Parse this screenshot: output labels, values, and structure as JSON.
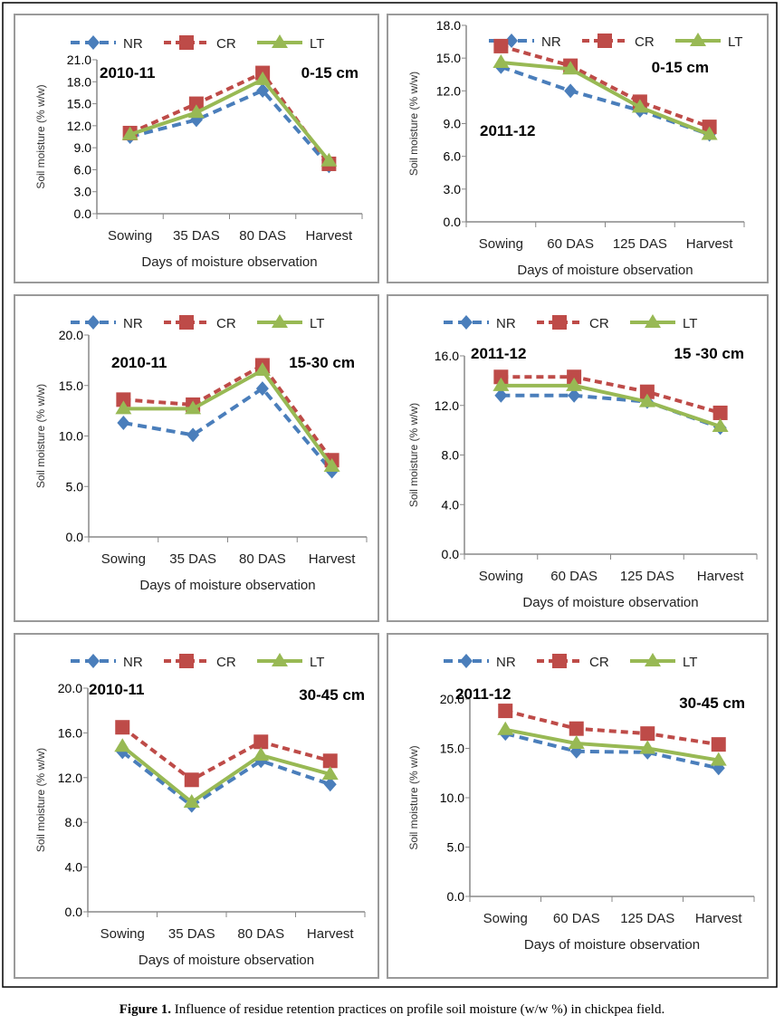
{
  "caption": {
    "label": "Figure 1.",
    "text": " Influence of residue retention practices on profile soil moisture (w/w %) in chickpea field."
  },
  "colors": {
    "NR": "#4a7ebb",
    "CR": "#be4b48",
    "LT": "#98b954"
  },
  "chart_data": [
    {
      "type": "line",
      "year": "2010-11",
      "depth": "0-15 cm",
      "xlabel": "Days of moisture observation",
      "ylabel": "Soil moisture (% w/w)",
      "categories": [
        "Sowing",
        "35 DAS",
        "80 DAS",
        "Harvest"
      ],
      "ylim": [
        0,
        21
      ],
      "yticks": [
        "0.0",
        "3.0",
        "6.0",
        "9.0",
        "12.0",
        "15.0",
        "18.0",
        "21.0"
      ],
      "legend": "top",
      "series": [
        {
          "name": "NR",
          "values": [
            10.5,
            12.8,
            16.8,
            6.5
          ]
        },
        {
          "name": "CR",
          "values": [
            11.0,
            15.0,
            19.2,
            6.8
          ]
        },
        {
          "name": "LT",
          "values": [
            10.8,
            13.8,
            18.3,
            7.2
          ]
        }
      ]
    },
    {
      "type": "line",
      "year": "2011-12",
      "depth": "0-15 cm",
      "xlabel": "Days of moisture observation",
      "ylabel": "Soil moisture (% w/w)",
      "categories": [
        "Sowing",
        "60 DAS",
        "125 DAS",
        "Harvest"
      ],
      "ylim": [
        0,
        18
      ],
      "yticks": [
        "0.0",
        "3.0",
        "6.0",
        "9.0",
        "12.0",
        "15.0",
        "18.0"
      ],
      "legend": "top",
      "series": [
        {
          "name": "NR",
          "values": [
            14.2,
            12.0,
            10.2,
            8.0
          ]
        },
        {
          "name": "CR",
          "values": [
            16.1,
            14.3,
            11.0,
            8.7
          ]
        },
        {
          "name": "LT",
          "values": [
            14.6,
            14.0,
            10.5,
            8.0
          ]
        }
      ]
    },
    {
      "type": "line",
      "year": "2010-11",
      "depth": "15-30 cm",
      "xlabel": "Days of moisture observation",
      "ylabel": "Soil moisture (% w/w)",
      "categories": [
        "Sowing",
        "35 DAS",
        "80 DAS",
        "Harvest"
      ],
      "ylim": [
        0,
        20
      ],
      "yticks": [
        "0.0",
        "5.0",
        "10.0",
        "15.0",
        "20.0"
      ],
      "legend": "top",
      "series": [
        {
          "name": "NR",
          "values": [
            11.3,
            10.1,
            14.7,
            6.5
          ]
        },
        {
          "name": "CR",
          "values": [
            13.6,
            13.1,
            17.0,
            7.6
          ]
        },
        {
          "name": "LT",
          "values": [
            12.7,
            12.7,
            16.5,
            7.0
          ]
        }
      ]
    },
    {
      "type": "line",
      "year": "2011-12",
      "depth": "15 -30 cm",
      "xlabel": "Days of moisture observation",
      "ylabel": "Soil moisture (% w/w)",
      "categories": [
        "Sowing",
        "60 DAS",
        "125 DAS",
        "Harvest"
      ],
      "ylim": [
        0,
        16
      ],
      "yticks": [
        "0.0",
        "4.0",
        "8.0",
        "12.0",
        "16.0"
      ],
      "legend": "top",
      "series": [
        {
          "name": "NR",
          "values": [
            12.8,
            12.8,
            12.3,
            10.2
          ]
        },
        {
          "name": "CR",
          "values": [
            14.3,
            14.3,
            13.1,
            11.4
          ]
        },
        {
          "name": "LT",
          "values": [
            13.6,
            13.6,
            12.3,
            10.3
          ]
        }
      ]
    },
    {
      "type": "line",
      "year": "2010-11",
      "depth": "30-45 cm",
      "xlabel": "Days of moisture observation",
      "ylabel": "Soil moisture (% w/w)",
      "categories": [
        "Sowing",
        "35 DAS",
        "80 DAS",
        "Harvest"
      ],
      "ylim": [
        0,
        20
      ],
      "yticks": [
        "0.0",
        "4.0",
        "8.0",
        "12.0",
        "16.0",
        "20.0"
      ],
      "legend": "top",
      "series": [
        {
          "name": "NR",
          "values": [
            14.3,
            9.5,
            13.5,
            11.4
          ]
        },
        {
          "name": "CR",
          "values": [
            16.5,
            11.8,
            15.2,
            13.5
          ]
        },
        {
          "name": "LT",
          "values": [
            14.8,
            9.8,
            14.0,
            12.3
          ]
        }
      ]
    },
    {
      "type": "line",
      "year": "2011-12",
      "depth": "30-45 cm",
      "xlabel": "Days of moisture observation",
      "ylabel": "Soil moisture (% w/w)",
      "categories": [
        "Sowing",
        "60 DAS",
        "125 DAS",
        "Harvest"
      ],
      "ylim": [
        0,
        20
      ],
      "yticks": [
        "0.0",
        "5.0",
        "10.0",
        "15.0",
        "20.0"
      ],
      "legend": "top",
      "series": [
        {
          "name": "NR",
          "values": [
            16.5,
            14.7,
            14.6,
            13.0
          ]
        },
        {
          "name": "CR",
          "values": [
            18.8,
            17.0,
            16.5,
            15.4
          ]
        },
        {
          "name": "LT",
          "values": [
            16.9,
            15.5,
            15.0,
            13.8
          ]
        }
      ]
    }
  ]
}
